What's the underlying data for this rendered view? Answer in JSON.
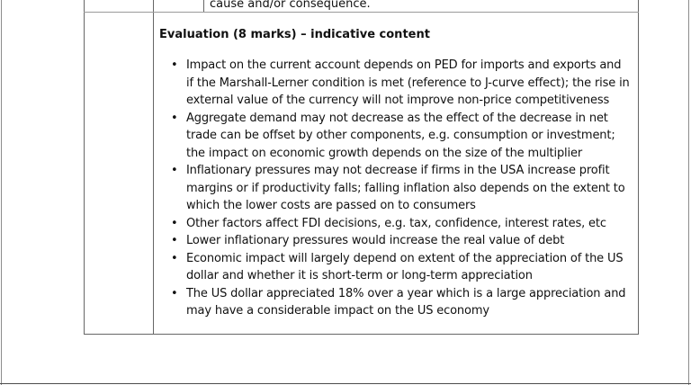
{
  "document": {
    "top_row": {
      "text": "cause and/or consequence."
    },
    "evaluation": {
      "heading": "Evaluation (8 marks) – indicative content",
      "bullets": [
        "Impact on the current account depends on PED for imports and exports and if the Marshall-Lerner condition is met (reference to J-curve effect); the rise in external value of the currency will not improve non-price competitiveness",
        "Aggregate demand may not decrease as the effect of the decrease in net trade can be offset by other components, e.g. consumption or investment; the impact on economic growth depends on the size of the multiplier",
        "Inflationary pressures may not decrease if firms in the USA increase profit margins or if productivity falls; falling inflation also depends on the extent to which the lower costs are passed on to consumers",
        "Other factors affect FDI decisions, e.g. tax, confidence, interest rates, etc",
        "Lower inflationary pressures would increase the real value of debt",
        "Economic impact will largely depend on extent of the appreciation of the US dollar and whether it is short-term or long-term appreciation",
        "The US dollar appreciated 18% over a year which is a large appreciation and may have a considerable impact on the US economy"
      ]
    },
    "colors": {
      "table_border": "#666666",
      "page_edge": "#8c8c8c",
      "bottom_rule": "#4d4d4d",
      "text": "#111111"
    }
  }
}
